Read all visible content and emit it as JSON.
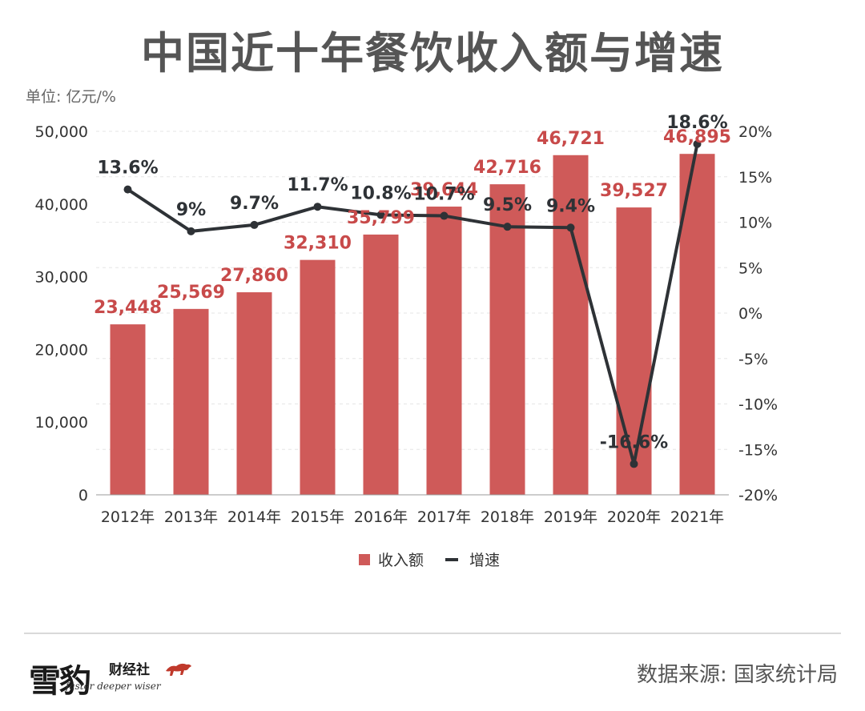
{
  "title": "中国近十年餐饮收入额与增速",
  "unit_label": "单位: 亿元/%",
  "source": "数据来源: 国家统计局",
  "logo": {
    "name": "雪豹",
    "sub": "财经社",
    "tagline": "faster deeper wiser",
    "icon": "leopard-icon"
  },
  "colors": {
    "bar": "#cf5a59",
    "bar_label": "#c84a4a",
    "line": "#2e3236",
    "axis_text": "#333333",
    "grid": "#e6e6e6"
  },
  "chart_data": {
    "type": "bar",
    "title": "中国近十年餐饮收入额与增速",
    "categories": [
      "2012年",
      "2013年",
      "2014年",
      "2015年",
      "2016年",
      "2017年",
      "2018年",
      "2019年",
      "2020年",
      "2021年"
    ],
    "series": [
      {
        "name": "收入额",
        "type": "bar",
        "axis": "left",
        "values": [
          23448,
          25569,
          27860,
          32310,
          35799,
          39644,
          42716,
          46721,
          39527,
          46895
        ],
        "labels": [
          "23,448",
          "25,569",
          "27,860",
          "32,310",
          "35,799",
          "39,644",
          "42,716",
          "46,721",
          "39,527",
          "46,895"
        ]
      },
      {
        "name": "增速",
        "type": "line",
        "axis": "right",
        "values": [
          13.6,
          9,
          9.7,
          11.7,
          10.8,
          10.7,
          9.5,
          9.4,
          -16.6,
          18.6
        ],
        "labels": [
          "13.6%",
          "9%",
          "9.7%",
          "11.7%",
          "10.8%",
          "10.7%",
          "9.5%",
          "9.4%",
          "-16.6%",
          "18.6%"
        ]
      }
    ],
    "ylim_left": [
      0,
      50000
    ],
    "ylim_right": [
      -20,
      20
    ],
    "left_ticks": [
      "0",
      "10,000",
      "20,000",
      "30,000",
      "40,000",
      "50,000"
    ],
    "right_ticks": [
      "-20%",
      "-15%",
      "-10%",
      "-5%",
      "0%",
      "5%",
      "10%",
      "15%",
      "20%"
    ],
    "legend": {
      "position": "bottom-center",
      "items": [
        "收入额",
        "增速"
      ]
    },
    "grid": true
  }
}
